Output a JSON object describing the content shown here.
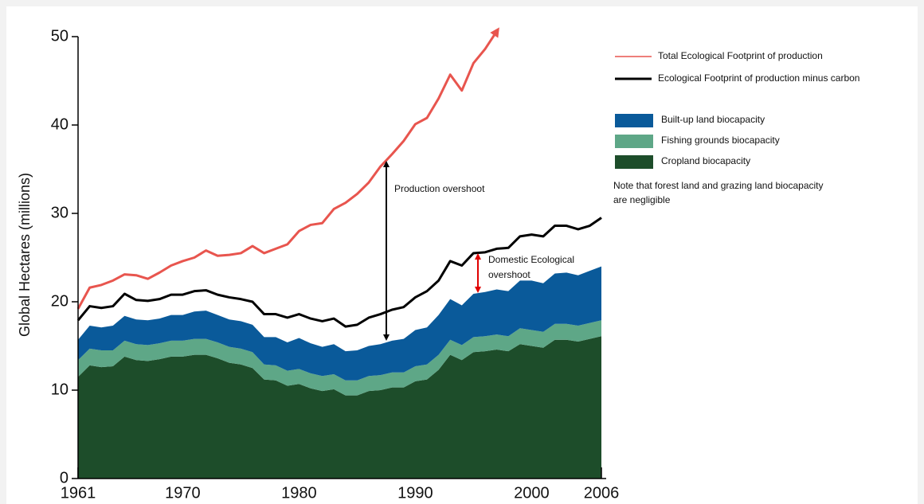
{
  "chart_data": {
    "type": "area",
    "ylabel": "Global Hectares (millions)",
    "x": [
      1961,
      1962,
      1963,
      1964,
      1965,
      1966,
      1967,
      1968,
      1969,
      1970,
      1971,
      1972,
      1973,
      1974,
      1975,
      1976,
      1977,
      1978,
      1979,
      1980,
      1981,
      1982,
      1983,
      1984,
      1985,
      1986,
      1987,
      1988,
      1989,
      1990,
      1991,
      1992,
      1993,
      1994,
      1995,
      1996,
      1997,
      1998,
      1999,
      2000,
      2001,
      2002,
      2003,
      2004,
      2005,
      2006
    ],
    "xlim": [
      1961,
      2006
    ],
    "xticks": [
      1961,
      1970,
      1980,
      1990,
      2000,
      2006
    ],
    "ylim": [
      0,
      50
    ],
    "yticks": [
      0,
      10,
      20,
      30,
      40,
      50
    ],
    "series": [
      {
        "name": "Total Ecological Footprint of production",
        "kind": "line",
        "color": "#e8554e",
        "values": [
          19.2,
          21.6,
          21.9,
          22.4,
          23.1,
          23.0,
          22.6,
          23.3,
          24.1,
          24.6,
          25.0,
          25.8,
          25.2,
          25.3,
          25.5,
          26.3,
          25.5,
          26.0,
          26.5,
          28.0,
          28.7,
          28.9,
          30.5,
          31.2,
          32.2,
          33.5,
          35.3,
          36.7,
          38.2,
          40.1,
          40.8,
          43.0,
          45.7,
          43.9,
          47.0,
          48.6,
          50.6,
          null,
          null,
          null,
          null,
          null,
          null,
          null,
          null,
          null
        ]
      },
      {
        "name": "Ecological Footprint of production minus carbon",
        "kind": "line",
        "color": "#000000",
        "values": [
          17.9,
          19.5,
          19.3,
          19.5,
          20.9,
          20.2,
          20.1,
          20.3,
          20.8,
          20.8,
          21.2,
          21.3,
          20.8,
          20.5,
          20.3,
          20.0,
          18.6,
          18.6,
          18.2,
          18.6,
          18.1,
          17.8,
          18.1,
          17.2,
          17.4,
          18.2,
          18.6,
          19.1,
          19.4,
          20.5,
          21.2,
          22.4,
          24.6,
          24.1,
          25.5,
          25.6,
          26.0,
          26.1,
          27.4,
          27.6,
          27.4,
          28.6,
          28.6,
          28.2,
          28.6,
          29.5
        ]
      },
      {
        "name": "Built-up land biocapacity",
        "kind": "area",
        "color": "#0a5a9a",
        "values": [
          2.3,
          2.6,
          2.6,
          2.8,
          2.8,
          2.8,
          2.8,
          2.8,
          2.9,
          2.9,
          3.1,
          3.2,
          3.1,
          3.1,
          3.1,
          3.1,
          3.1,
          3.2,
          3.2,
          3.5,
          3.4,
          3.3,
          3.4,
          3.3,
          3.4,
          3.4,
          3.5,
          3.6,
          3.8,
          4.1,
          4.2,
          4.5,
          4.6,
          4.5,
          4.9,
          5.0,
          5.1,
          5.1,
          5.4,
          5.6,
          5.5,
          5.7,
          5.8,
          5.7,
          5.9,
          6.1
        ]
      },
      {
        "name": "Fishing grounds biocapacity",
        "kind": "area",
        "color": "#5ea787",
        "values": [
          1.9,
          1.9,
          1.9,
          1.8,
          1.8,
          1.8,
          1.8,
          1.8,
          1.8,
          1.8,
          1.8,
          1.8,
          1.8,
          1.8,
          1.8,
          1.8,
          1.7,
          1.7,
          1.7,
          1.7,
          1.7,
          1.7,
          1.7,
          1.7,
          1.7,
          1.7,
          1.7,
          1.7,
          1.7,
          1.7,
          1.7,
          1.7,
          1.7,
          1.7,
          1.7,
          1.7,
          1.7,
          1.7,
          1.8,
          1.8,
          1.8,
          1.8,
          1.8,
          1.8,
          1.8,
          1.8
        ]
      },
      {
        "name": "Cropland biocapacity",
        "kind": "area",
        "color": "#1d4d2a",
        "values": [
          11.5,
          12.8,
          12.6,
          12.7,
          13.8,
          13.4,
          13.3,
          13.5,
          13.8,
          13.8,
          14.0,
          14.0,
          13.6,
          13.1,
          12.9,
          12.5,
          11.2,
          11.1,
          10.5,
          10.7,
          10.2,
          9.9,
          10.1,
          9.4,
          9.4,
          9.9,
          10.0,
          10.3,
          10.3,
          11.0,
          11.2,
          12.3,
          14.0,
          13.4,
          14.3,
          14.4,
          14.6,
          14.4,
          15.2,
          15.0,
          14.8,
          15.7,
          15.7,
          15.5,
          15.8,
          16.1
        ]
      }
    ],
    "annotations": {
      "production": "Production overshoot",
      "domestic": [
        "Domestic Ecological",
        "overshoot"
      ],
      "note": [
        "Note that forest land and grazing land biocapacity",
        "are negligible"
      ]
    }
  }
}
